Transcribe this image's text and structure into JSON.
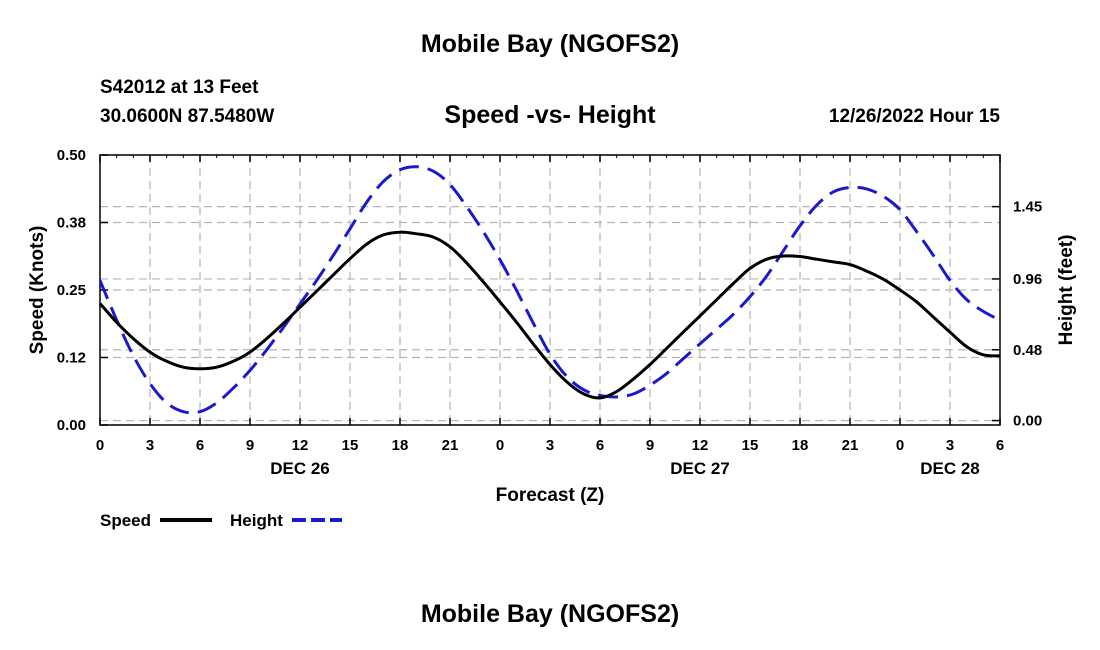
{
  "header": {
    "title": "Mobile Bay (NGOFS2)",
    "station": "S42012 at 13 Feet",
    "coords": "30.0600N  87.5480W",
    "subtitle": "Speed -vs- Height",
    "timestamp": "12/26/2022 Hour 15"
  },
  "footer": {
    "title": "Mobile Bay (NGOFS2)"
  },
  "colors": {
    "speed": "#000000",
    "height": "#1a1acc",
    "grid": "#b4b4b4"
  },
  "chart_data": {
    "type": "line",
    "xlabel": "Forecast (Z)",
    "ylabel_left": "Speed (Knots)",
    "ylabel_right": "Height (feet)",
    "x_hours_range": [
      0,
      54
    ],
    "x_tick_labels": [
      "0",
      "3",
      "6",
      "9",
      "12",
      "15",
      "18",
      "21",
      "0",
      "3",
      "6",
      "9",
      "12",
      "15",
      "18",
      "21",
      "0",
      "3",
      "6"
    ],
    "date_labels": [
      {
        "label": "DEC 26",
        "hour": 12
      },
      {
        "label": "DEC 27",
        "hour": 36
      },
      {
        "label": "DEC 28",
        "hour": 51
      }
    ],
    "left_axis": {
      "ylim": [
        0.0,
        0.5
      ],
      "ticks": [
        0.0,
        0.125,
        0.25,
        0.375,
        0.5
      ],
      "tick_labels": [
        "0.00",
        "0.12",
        "0.25",
        "0.38",
        "0.50"
      ]
    },
    "right_axis": {
      "ylim": [
        -0.03,
        1.8
      ],
      "ticks": [
        0.0,
        0.48,
        0.96,
        1.45
      ],
      "tick_labels": [
        "0.00",
        "0.48",
        "0.96",
        "1.45"
      ]
    },
    "grid": true,
    "legend_placement": "bottom-left",
    "series": [
      {
        "name": "Speed",
        "axis": "left",
        "style": "solid",
        "points": [
          [
            0,
            0.225
          ],
          [
            1,
            0.19
          ],
          [
            2,
            0.16
          ],
          [
            3,
            0.135
          ],
          [
            4,
            0.118
          ],
          [
            5,
            0.107
          ],
          [
            6,
            0.104
          ],
          [
            7,
            0.107
          ],
          [
            8,
            0.118
          ],
          [
            9,
            0.135
          ],
          [
            10,
            0.16
          ],
          [
            11,
            0.188
          ],
          [
            12,
            0.218
          ],
          [
            13,
            0.248
          ],
          [
            14,
            0.278
          ],
          [
            15,
            0.308
          ],
          [
            16,
            0.335
          ],
          [
            17,
            0.352
          ],
          [
            18,
            0.357
          ],
          [
            19,
            0.354
          ],
          [
            20,
            0.348
          ],
          [
            21,
            0.33
          ],
          [
            22,
            0.3
          ],
          [
            23,
            0.265
          ],
          [
            24,
            0.228
          ],
          [
            25,
            0.19
          ],
          [
            26,
            0.15
          ],
          [
            27,
            0.112
          ],
          [
            28,
            0.08
          ],
          [
            29,
            0.058
          ],
          [
            30,
            0.05
          ],
          [
            31,
            0.062
          ],
          [
            32,
            0.085
          ],
          [
            33,
            0.112
          ],
          [
            34,
            0.142
          ],
          [
            35,
            0.172
          ],
          [
            36,
            0.202
          ],
          [
            37,
            0.232
          ],
          [
            38,
            0.262
          ],
          [
            39,
            0.29
          ],
          [
            40,
            0.307
          ],
          [
            41,
            0.313
          ],
          [
            42,
            0.312
          ],
          [
            43,
            0.307
          ],
          [
            44,
            0.302
          ],
          [
            45,
            0.297
          ],
          [
            46,
            0.285
          ],
          [
            47,
            0.27
          ],
          [
            48,
            0.25
          ],
          [
            49,
            0.228
          ],
          [
            50,
            0.2
          ],
          [
            51,
            0.172
          ],
          [
            52,
            0.145
          ],
          [
            53,
            0.13
          ],
          [
            54,
            0.128
          ]
        ]
      },
      {
        "name": "Height",
        "axis": "right",
        "style": "dashed",
        "points": [
          [
            0,
            0.95
          ],
          [
            1,
            0.68
          ],
          [
            2,
            0.44
          ],
          [
            3,
            0.25
          ],
          [
            4,
            0.12
          ],
          [
            5,
            0.06
          ],
          [
            6,
            0.06
          ],
          [
            7,
            0.12
          ],
          [
            8,
            0.22
          ],
          [
            9,
            0.34
          ],
          [
            10,
            0.48
          ],
          [
            11,
            0.63
          ],
          [
            12,
            0.79
          ],
          [
            13,
            0.95
          ],
          [
            14,
            1.12
          ],
          [
            15,
            1.3
          ],
          [
            16,
            1.48
          ],
          [
            17,
            1.62
          ],
          [
            18,
            1.7
          ],
          [
            19,
            1.72
          ],
          [
            20,
            1.69
          ],
          [
            21,
            1.6
          ],
          [
            22,
            1.45
          ],
          [
            23,
            1.28
          ],
          [
            24,
            1.09
          ],
          [
            25,
            0.88
          ],
          [
            26,
            0.66
          ],
          [
            27,
            0.45
          ],
          [
            28,
            0.3
          ],
          [
            29,
            0.21
          ],
          [
            30,
            0.17
          ],
          [
            31,
            0.16
          ],
          [
            32,
            0.18
          ],
          [
            33,
            0.24
          ],
          [
            34,
            0.32
          ],
          [
            35,
            0.42
          ],
          [
            36,
            0.52
          ],
          [
            37,
            0.62
          ],
          [
            38,
            0.72
          ],
          [
            39,
            0.84
          ],
          [
            40,
            0.98
          ],
          [
            41,
            1.15
          ],
          [
            42,
            1.32
          ],
          [
            43,
            1.46
          ],
          [
            44,
            1.55
          ],
          [
            45,
            1.58
          ],
          [
            46,
            1.57
          ],
          [
            47,
            1.52
          ],
          [
            48,
            1.43
          ],
          [
            49,
            1.28
          ],
          [
            50,
            1.12
          ],
          [
            51,
            0.95
          ],
          [
            52,
            0.82
          ],
          [
            53,
            0.74
          ],
          [
            54,
            0.68
          ]
        ]
      }
    ]
  }
}
